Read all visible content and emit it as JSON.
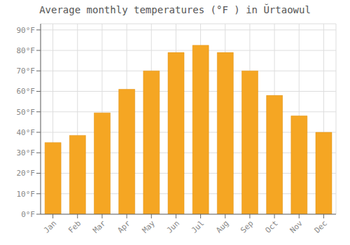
{
  "chart_data": {
    "type": "bar",
    "title": "Average monthly temperatures (°F ) in Ŭrtaowul",
    "categories": [
      "Jan",
      "Feb",
      "Mar",
      "Apr",
      "May",
      "Jun",
      "Jul",
      "Aug",
      "Sep",
      "Oct",
      "Nov",
      "Dec"
    ],
    "values": [
      35,
      38.5,
      49.5,
      61,
      70,
      79,
      82.5,
      79,
      70,
      58,
      48,
      40
    ],
    "color": "#F5A623",
    "ylim": [
      0,
      93
    ],
    "yticks": [
      {
        "value": 0,
        "label": "0°F"
      },
      {
        "value": 10,
        "label": "10°F"
      },
      {
        "value": 20,
        "label": "20°F"
      },
      {
        "value": 30,
        "label": "30°F"
      },
      {
        "value": 40,
        "label": "40°F"
      },
      {
        "value": 50,
        "label": "50°F"
      },
      {
        "value": 60,
        "label": "60°F"
      },
      {
        "value": 70,
        "label": "70°F"
      },
      {
        "value": 80,
        "label": "80°F"
      },
      {
        "value": 90,
        "label": "90°F"
      }
    ],
    "grid": true
  }
}
